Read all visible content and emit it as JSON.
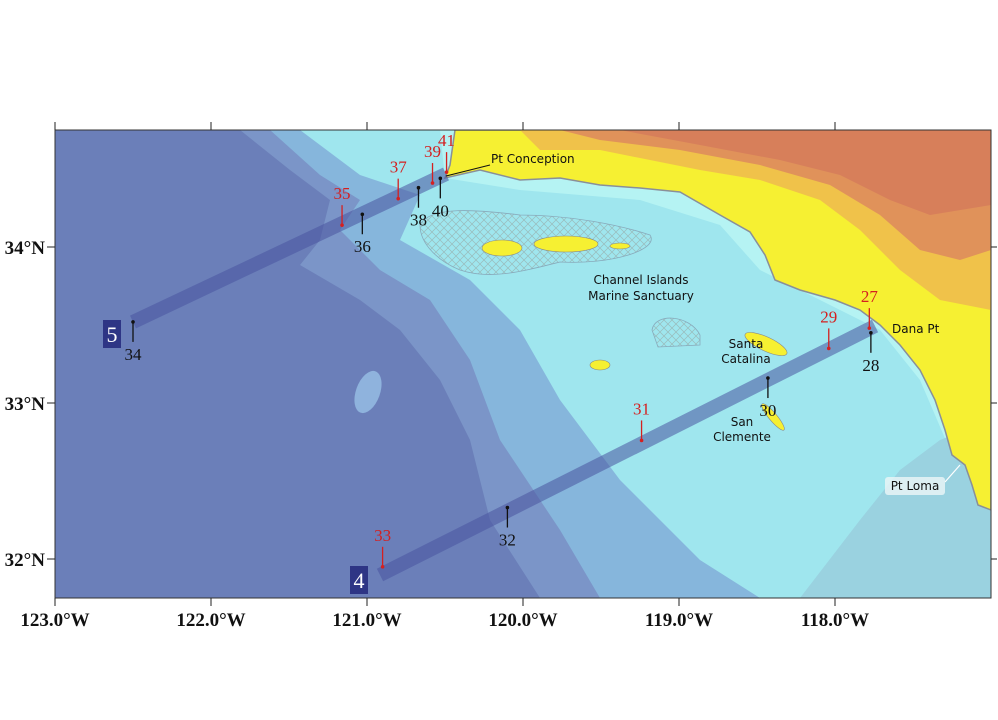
{
  "map": {
    "xlim": [
      -123,
      -117
    ],
    "ylim": [
      31.75,
      34.75
    ],
    "xticks": [
      {
        "value": -123,
        "label": "123.0°W"
      },
      {
        "value": -122,
        "label": "122.0°W"
      },
      {
        "value": -121,
        "label": "121.0°W"
      },
      {
        "value": -120,
        "label": "120.0°W"
      },
      {
        "value": -119,
        "label": "119.0°W"
      },
      {
        "value": -118,
        "label": "118.0°W"
      }
    ],
    "yticks": [
      {
        "value": 32,
        "label": "32°N"
      },
      {
        "value": 33,
        "label": "33°N"
      },
      {
        "value": 34,
        "label": "34°N"
      }
    ],
    "stations": [
      {
        "label": "27",
        "lon": -117.78,
        "lat": 33.48,
        "color": "#d42020"
      },
      {
        "label": "28",
        "lon": -117.77,
        "lat": 33.45,
        "color": "#111111"
      },
      {
        "label": "29",
        "lon": -118.04,
        "lat": 33.35,
        "color": "#d42020"
      },
      {
        "label": "30",
        "lon": -118.43,
        "lat": 33.16,
        "color": "#111111"
      },
      {
        "label": "31",
        "lon": -119.24,
        "lat": 32.76,
        "color": "#d42020"
      },
      {
        "label": "32",
        "lon": -120.1,
        "lat": 32.33,
        "color": "#111111"
      },
      {
        "label": "33",
        "lon": -120.9,
        "lat": 31.95,
        "color": "#d42020"
      },
      {
        "label": "34",
        "lon": -122.5,
        "lat": 33.52,
        "color": "#111111"
      },
      {
        "label": "35",
        "lon": -121.16,
        "lat": 34.14,
        "color": "#d42020"
      },
      {
        "label": "36",
        "lon": -121.03,
        "lat": 34.21,
        "color": "#111111"
      },
      {
        "label": "37",
        "lon": -120.8,
        "lat": 34.31,
        "color": "#d42020"
      },
      {
        "label": "38",
        "lon": -120.67,
        "lat": 34.38,
        "color": "#111111"
      },
      {
        "label": "39",
        "lon": -120.58,
        "lat": 34.41,
        "color": "#d42020"
      },
      {
        "label": "40",
        "lon": -120.53,
        "lat": 34.44,
        "color": "#111111"
      },
      {
        "label": "41",
        "lon": -120.49,
        "lat": 34.48,
        "color": "#d42020"
      }
    ],
    "transects": [
      "5",
      "4"
    ],
    "places": {
      "pt_conception": "Pt Conception",
      "sanctuary": [
        "Channel Islands",
        "Marine Sanctuary"
      ],
      "catalina": [
        "Santa",
        "Catalina"
      ],
      "clemente": [
        "San",
        "Clemente"
      ],
      "dana": "Dana Pt",
      "loma": "Pt Loma"
    }
  }
}
